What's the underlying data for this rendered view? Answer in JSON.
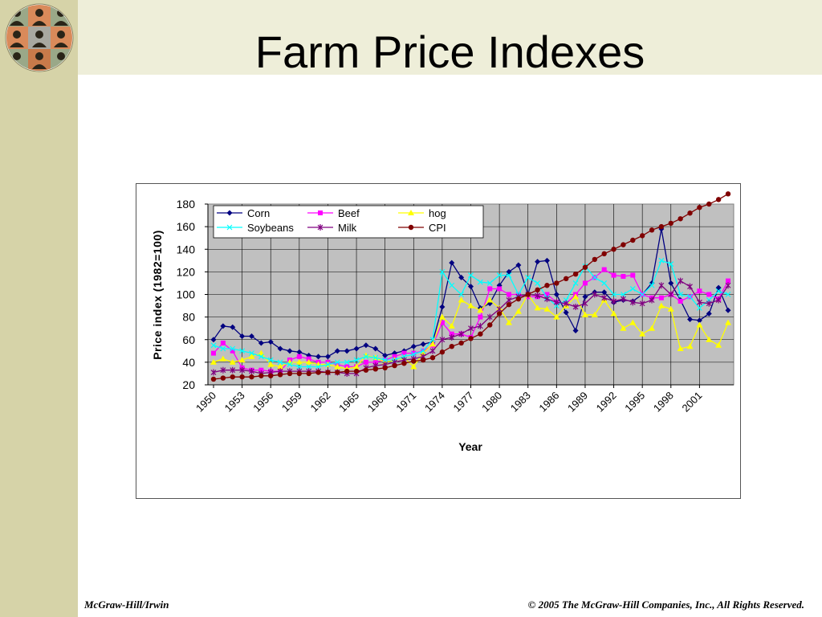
{
  "slide": {
    "title": "Farm Price Indexes",
    "footer_left": "McGraw-Hill/Irwin",
    "footer_right": "© 2005 The McGraw-Hill Companies, Inc., All Rights Reserved."
  },
  "colors": {
    "left_band": "#d6d3a8",
    "top_band": "#eeeed9",
    "plot_bg": "#c0c0c0"
  },
  "chart_data": {
    "type": "line",
    "title": "",
    "xlabel": "Year",
    "ylabel": "Price index (1982=100)",
    "ylim": [
      20,
      180
    ],
    "yticks": [
      20,
      40,
      60,
      80,
      100,
      120,
      140,
      160,
      180
    ],
    "xlim": [
      1950,
      2004
    ],
    "xtick_labels": [
      "1950",
      "1953",
      "1956",
      "1959",
      "1962",
      "1965",
      "1968",
      "1971",
      "1974",
      "1977",
      "1980",
      "1983",
      "1986",
      "1989",
      "1992",
      "1995",
      "1998",
      "2001"
    ],
    "grid": true,
    "legend_position": "top-left",
    "x": [
      1950,
      1951,
      1952,
      1953,
      1954,
      1955,
      1956,
      1957,
      1958,
      1959,
      1960,
      1961,
      1962,
      1963,
      1964,
      1965,
      1966,
      1967,
      1968,
      1969,
      1970,
      1971,
      1972,
      1973,
      1974,
      1975,
      1976,
      1977,
      1978,
      1979,
      1980,
      1981,
      1982,
      1983,
      1984,
      1985,
      1986,
      1987,
      1988,
      1989,
      1990,
      1991,
      1992,
      1993,
      1994,
      1995,
      1996,
      1997,
      1998,
      1999,
      2000,
      2001,
      2002,
      2003,
      2004
    ],
    "series": [
      {
        "name": "Corn",
        "color": "#000080",
        "marker": "diamond",
        "values": [
          60,
          72,
          71,
          63,
          63,
          57,
          58,
          52,
          50,
          49,
          46,
          45,
          45,
          50,
          50,
          52,
          55,
          52,
          46,
          48,
          50,
          54,
          56,
          58,
          89,
          128,
          115,
          107,
          88,
          92,
          108,
          120,
          126,
          100,
          129,
          130,
          100,
          84,
          68,
          98,
          102,
          102,
          93,
          95,
          94,
          100,
          110,
          158,
          110,
          95,
          78,
          77,
          83,
          106,
          86
        ]
      },
      {
        "name": "Beef",
        "color": "#ff00ff",
        "marker": "square",
        "values": [
          48,
          57,
          50,
          35,
          33,
          33,
          32,
          32,
          42,
          45,
          43,
          40,
          40,
          38,
          36,
          36,
          40,
          40,
          42,
          45,
          48,
          48,
          50,
          55,
          75,
          65,
          65,
          62,
          80,
          105,
          105,
          100,
          100,
          98,
          98,
          100,
          93,
          92,
          100,
          110,
          115,
          122,
          117,
          116,
          117,
          100,
          97,
          97,
          100,
          94,
          98,
          103,
          100,
          96,
          112
        ]
      },
      {
        "name": "hog",
        "color": "#ffff00",
        "marker": "triangle",
        "values": [
          40,
          43,
          40,
          42,
          45,
          48,
          38,
          36,
          40,
          40,
          40,
          38,
          38,
          36,
          34,
          36,
          46,
          44,
          40,
          42,
          44,
          36,
          48,
          56,
          80,
          72,
          95,
          90,
          86,
          95,
          88,
          75,
          85,
          100,
          88,
          87,
          80,
          90,
          98,
          82,
          82,
          95,
          83,
          70,
          75,
          65,
          70,
          90,
          87,
          52,
          54,
          73,
          60,
          55,
          75
        ]
      },
      {
        "name": "Soybeans",
        "color": "#00ffff",
        "marker": "x",
        "values": [
          55,
          52,
          52,
          50,
          48,
          45,
          42,
          40,
          38,
          36,
          36,
          36,
          38,
          40,
          40,
          42,
          45,
          44,
          42,
          42,
          45,
          47,
          50,
          60,
          120,
          108,
          100,
          117,
          111,
          110,
          117,
          117,
          100,
          115,
          110,
          97,
          90,
          95,
          110,
          125,
          115,
          110,
          100,
          100,
          105,
          100,
          108,
          130,
          127,
          100,
          98,
          88,
          95,
          103,
          100
        ]
      },
      {
        "name": "Milk",
        "color": "#800080",
        "marker": "star",
        "values": [
          31,
          33,
          33,
          33,
          32,
          30,
          31,
          32,
          32,
          32,
          32,
          32,
          31,
          31,
          30,
          30,
          35,
          37,
          38,
          40,
          42,
          43,
          45,
          50,
          60,
          62,
          65,
          70,
          72,
          80,
          87,
          95,
          98,
          100,
          99,
          96,
          93,
          92,
          89,
          92,
          100,
          97,
          94,
          96,
          93,
          92,
          95,
          108,
          100,
          112,
          107,
          93,
          92,
          95,
          108
        ]
      },
      {
        "name": "CPI",
        "color": "#800000",
        "marker": "circle",
        "values": [
          25,
          26,
          27,
          27,
          27,
          28,
          28,
          29,
          30,
          30,
          30,
          31,
          31,
          31,
          32,
          32,
          33,
          34,
          35,
          37,
          39,
          41,
          42,
          44,
          49,
          54,
          57,
          61,
          65,
          73,
          83,
          91,
          96,
          100,
          104,
          108,
          110,
          114,
          118,
          124,
          131,
          136,
          140,
          144,
          148,
          152,
          157,
          160,
          163,
          167,
          172,
          177,
          180,
          184,
          189
        ]
      }
    ]
  }
}
